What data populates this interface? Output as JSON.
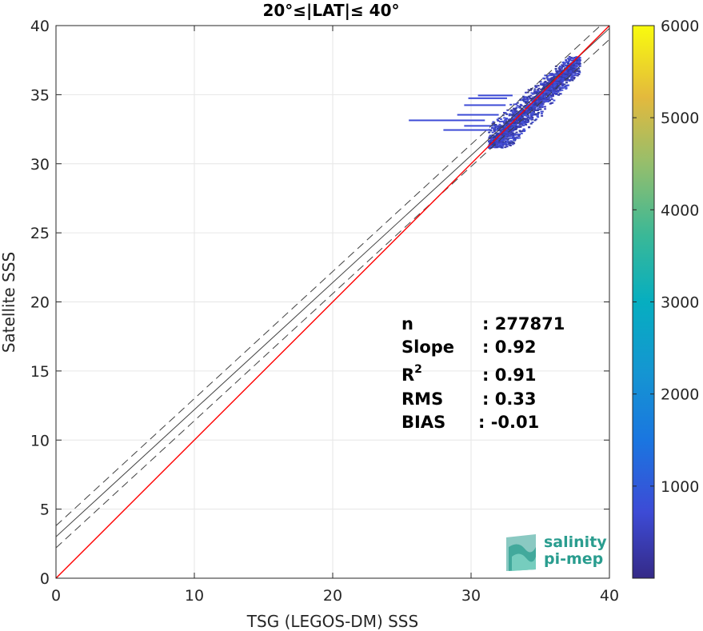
{
  "chart_data": {
    "type": "heatmap",
    "title": "20°≤|LAT|≤ 40°",
    "xlabel": "TSG (LEGOS-DM) SSS",
    "ylabel": "Satellite SSS",
    "xlim": [
      0,
      40
    ],
    "ylim": [
      0,
      40
    ],
    "xticks": [
      "0",
      "10",
      "20",
      "30",
      "40"
    ],
    "yticks": [
      "0",
      "5",
      "10",
      "15",
      "20",
      "25",
      "30",
      "35",
      "40"
    ],
    "grid": true,
    "one_to_one_line": {
      "color": "#ff0000",
      "x": [
        0,
        40
      ],
      "y": [
        0,
        40
      ]
    },
    "fit_line": {
      "color": "#404040",
      "slope": 0.92,
      "intercept": 3.0
    },
    "fit_band": {
      "offset": 0.8,
      "dash": "dashed"
    },
    "density_region": {
      "x": [
        31,
        38
      ],
      "y": [
        31,
        38
      ]
    },
    "colorbar": {
      "colormap": "parula",
      "range": [
        0,
        6000
      ],
      "ticks": [
        "1000",
        "2000",
        "3000",
        "4000",
        "5000",
        "6000"
      ]
    },
    "stats": [
      {
        "label": "n",
        "value": ": 277871"
      },
      {
        "label": "Slope",
        "value": ": 0.92"
      },
      {
        "label": "R",
        "sup": "2",
        "value": ": 0.91"
      },
      {
        "label": "RMS",
        "value": ": 0.33"
      },
      {
        "label": "BIAS",
        "value": ": -0.01"
      }
    ]
  },
  "logo": {
    "line1": "salinity",
    "line2": "pi-mep",
    "color": "#2a9d8f"
  }
}
